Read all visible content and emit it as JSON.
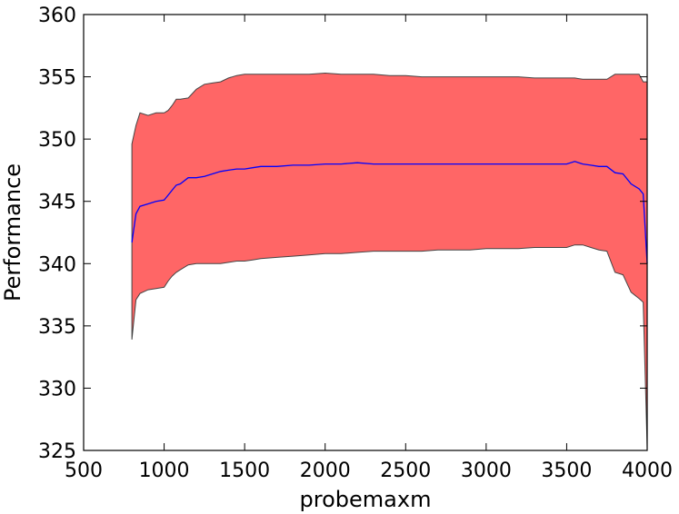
{
  "chart_data": {
    "type": "area",
    "title": "",
    "xlabel": "probemaxm",
    "ylabel": "Performance",
    "xlim": [
      500,
      4000
    ],
    "ylim": [
      325,
      360
    ],
    "xticks": [
      500,
      1000,
      1500,
      2000,
      2500,
      3000,
      3500,
      4000
    ],
    "yticks": [
      325,
      330,
      335,
      340,
      345,
      350,
      355,
      360
    ],
    "grid": false,
    "legend": "none",
    "colors": {
      "band": "#ff6666",
      "band_edge": "#444444",
      "mean": "#0000ff"
    },
    "x": [
      800,
      825,
      850,
      900,
      950,
      1000,
      1025,
      1050,
      1075,
      1100,
      1150,
      1200,
      1250,
      1300,
      1350,
      1400,
      1450,
      1500,
      1550,
      1600,
      1700,
      1800,
      1900,
      2000,
      2100,
      2200,
      2300,
      2400,
      2500,
      2600,
      2700,
      2800,
      2900,
      3000,
      3100,
      3200,
      3300,
      3400,
      3500,
      3550,
      3600,
      3650,
      3700,
      3750,
      3800,
      3850,
      3900,
      3950,
      3975,
      4000
    ],
    "series": [
      {
        "role": "upper",
        "values": [
          349.6,
          351.1,
          352.1,
          351.9,
          352.1,
          352.1,
          352.3,
          352.7,
          353.2,
          353.2,
          353.3,
          354.0,
          354.4,
          354.5,
          354.6,
          354.9,
          355.1,
          355.2,
          355.2,
          355.2,
          355.2,
          355.2,
          355.2,
          355.3,
          355.2,
          355.2,
          355.2,
          355.1,
          355.1,
          355.0,
          355.0,
          355.0,
          355.0,
          355.0,
          355.0,
          355.0,
          354.9,
          354.9,
          354.9,
          354.9,
          354.8,
          354.8,
          354.8,
          354.8,
          355.2,
          355.2,
          355.2,
          355.2,
          354.6,
          354.6
        ]
      },
      {
        "role": "mean",
        "values": [
          341.7,
          344.0,
          344.6,
          344.8,
          345.0,
          345.1,
          345.5,
          345.9,
          346.3,
          346.4,
          346.9,
          346.9,
          347.0,
          347.2,
          347.4,
          347.5,
          347.6,
          347.6,
          347.7,
          347.8,
          347.8,
          347.9,
          347.9,
          348.0,
          348.0,
          348.1,
          348.0,
          348.0,
          348.0,
          348.0,
          348.0,
          348.0,
          348.0,
          348.0,
          348.0,
          348.0,
          348.0,
          348.0,
          348.0,
          348.2,
          348.0,
          347.9,
          347.8,
          347.8,
          347.3,
          347.2,
          346.4,
          346.0,
          345.6,
          340.0
        ]
      },
      {
        "role": "lower",
        "values": [
          333.9,
          337.1,
          337.6,
          337.9,
          338.0,
          338.1,
          338.6,
          339.0,
          339.3,
          339.5,
          339.9,
          340.0,
          340.0,
          340.0,
          340.0,
          340.1,
          340.2,
          340.2,
          340.3,
          340.4,
          340.5,
          340.6,
          340.7,
          340.8,
          340.8,
          340.9,
          341.0,
          341.0,
          341.0,
          341.0,
          341.1,
          341.1,
          341.1,
          341.2,
          341.2,
          341.2,
          341.3,
          341.3,
          341.3,
          341.5,
          341.5,
          341.3,
          341.1,
          341.0,
          339.3,
          339.1,
          337.7,
          337.2,
          336.9,
          325.2
        ]
      }
    ]
  }
}
